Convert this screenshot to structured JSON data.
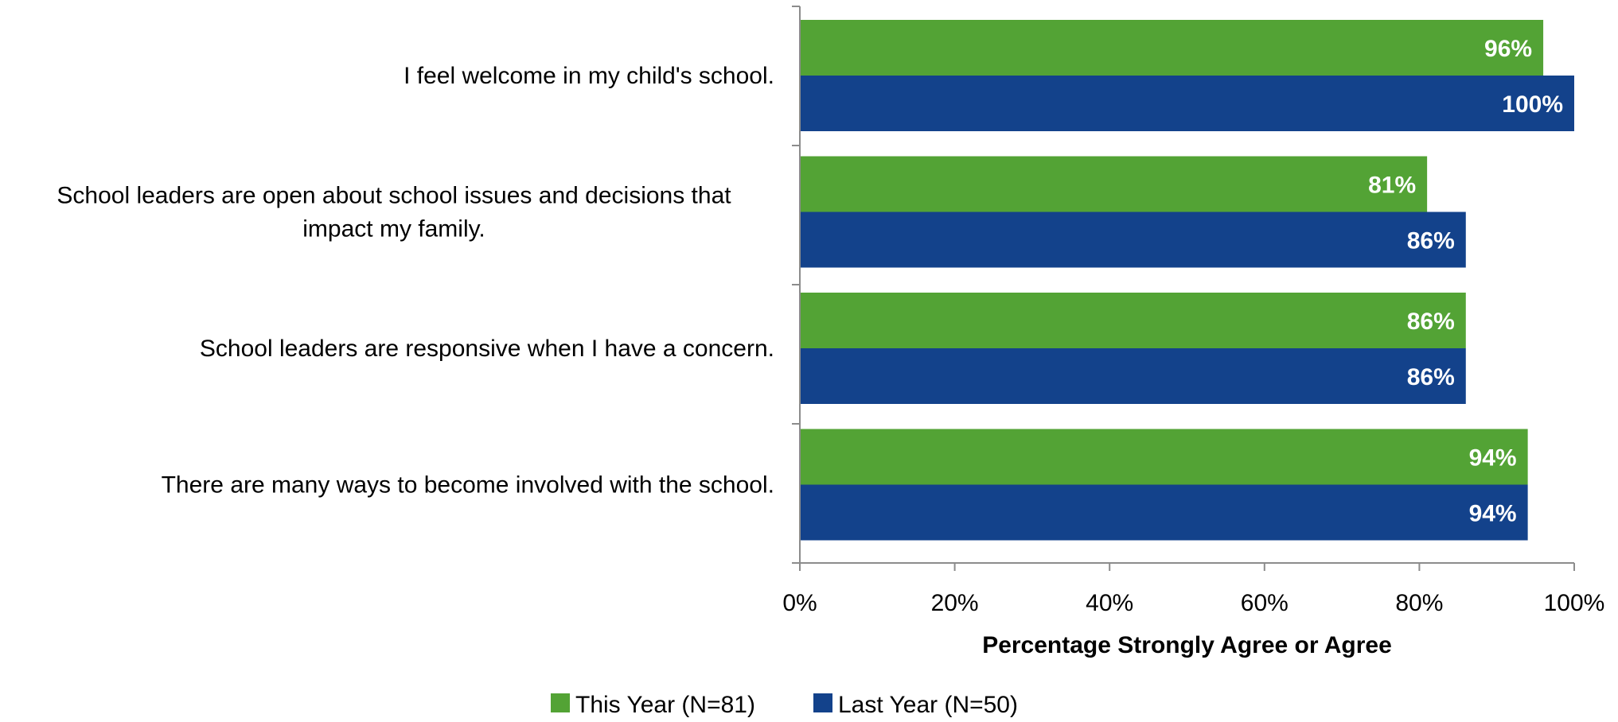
{
  "chart_data": {
    "type": "bar",
    "orientation": "horizontal",
    "categories": [
      "I feel welcome in my child's school.",
      "School leaders are open about school issues and decisions that impact my family.",
      "School leaders are responsive when I have a concern.",
      "There are many ways to become involved with the school."
    ],
    "category_lines": [
      [
        "I feel welcome in my child's school."
      ],
      [
        "School leaders are open about school issues and decisions that",
        "impact my family."
      ],
      [
        "School leaders are responsive when I have a concern."
      ],
      [
        "There are many ways to become involved with the school."
      ]
    ],
    "series": [
      {
        "name": "This Year (N=81)",
        "color": "#53a335",
        "values": [
          96,
          81,
          86,
          94
        ]
      },
      {
        "name": "Last Year (N=50)",
        "color": "#13428b",
        "values": [
          100,
          86,
          86,
          94
        ]
      }
    ],
    "value_suffix": "%",
    "xlim": [
      0,
      100
    ],
    "xticks": [
      0,
      20,
      40,
      60,
      80,
      100
    ],
    "xtick_labels": [
      "0%",
      "20%",
      "40%",
      "60%",
      "80%",
      "100%"
    ],
    "xlabel": "Percentage Strongly Agree or Agree",
    "ylabel": "",
    "title": "",
    "grid": false,
    "legend_position": "bottom"
  }
}
